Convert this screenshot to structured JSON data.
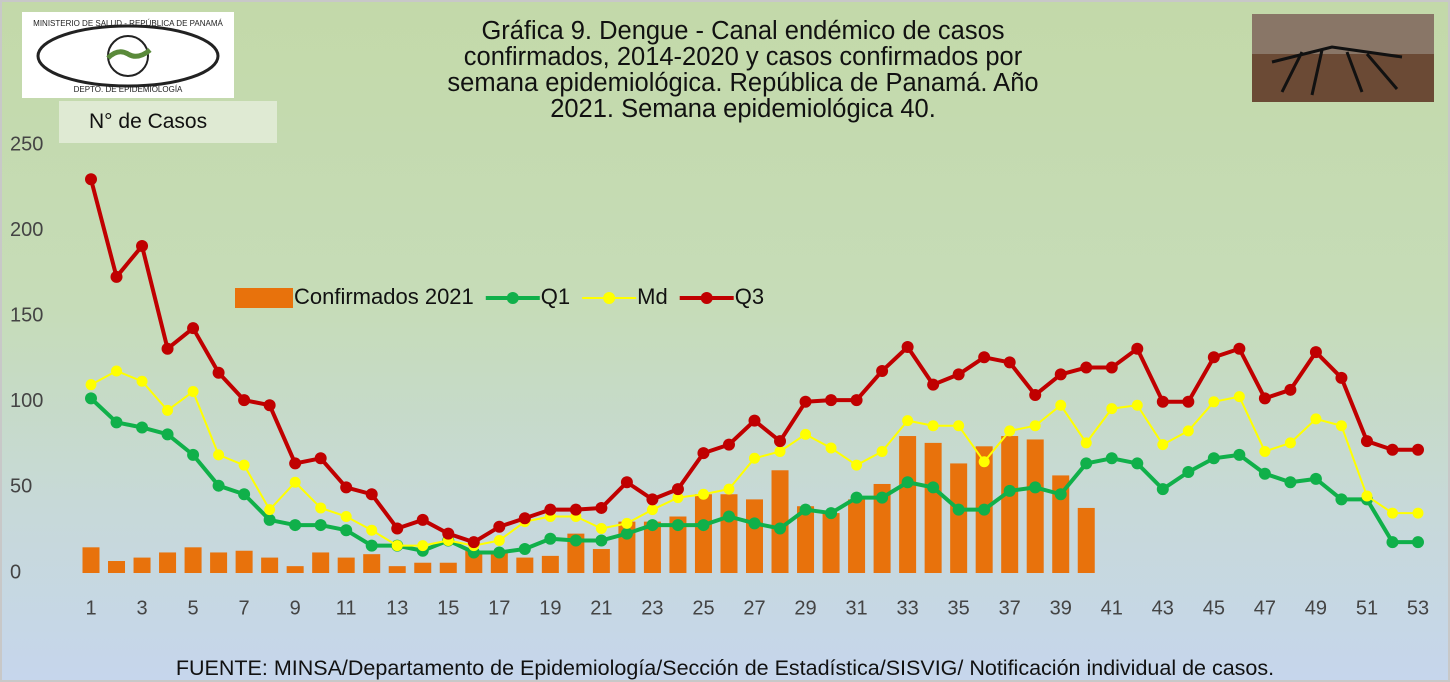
{
  "chart_data": {
    "type": "bar-line",
    "title": "Gráfica 9. Dengue - Canal endémico de casos confirmados, 2014-2020 y casos confirmados por semana epidemiológica. República de Panamá. Año 2021. Semana epidemiológica 40.",
    "y_label": "N° de Casos",
    "source": "FUENTE: MINSA/Departamento de Epidemiología/Sección de Estadística/SISVIG/ Notificación individual de casos.",
    "logo": {
      "top": "MINISTERIO DE SALUD - REPÚBLICA DE PANAMÁ",
      "bottom": "DEPTO. DE EPIDEMIOLOGÍA"
    },
    "categories": [
      1,
      null,
      3,
      null,
      5,
      null,
      7,
      null,
      9,
      null,
      11,
      null,
      13,
      null,
      15,
      null,
      17,
      null,
      19,
      null,
      21,
      null,
      23,
      null,
      25,
      null,
      27,
      null,
      29,
      null,
      31,
      null,
      33,
      null,
      35,
      null,
      37,
      null,
      39,
      null,
      41,
      null,
      43,
      null,
      45,
      null,
      47,
      null,
      49,
      null,
      51,
      null,
      53
    ],
    "ylim": [
      0,
      250
    ],
    "yticks": [
      0,
      50,
      100,
      150,
      200,
      250
    ],
    "grid": false,
    "series": [
      {
        "name": "Confirmados 2021",
        "kind": "bar",
        "color": "#e8720c",
        "values": [
          15,
          7,
          9,
          12,
          15,
          12,
          13,
          9,
          4,
          12,
          9,
          11,
          4,
          6,
          6,
          13,
          13,
          9,
          10,
          23,
          14,
          30,
          30,
          33,
          46,
          46,
          43,
          60,
          39,
          35,
          43,
          52,
          80,
          76,
          64,
          74,
          80,
          78,
          57,
          38,
          null,
          null,
          null,
          null,
          null,
          null,
          null,
          null,
          null,
          null,
          null,
          null,
          null
        ]
      },
      {
        "name": "Q1",
        "kind": "line",
        "color": "#10b04a",
        "values": [
          102,
          88,
          85,
          81,
          69,
          51,
          46,
          31,
          28,
          28,
          25,
          16,
          16,
          13,
          19,
          12,
          12,
          14,
          20,
          19,
          19,
          23,
          28,
          28,
          28,
          33,
          29,
          26,
          37,
          35,
          44,
          44,
          53,
          50,
          37,
          37,
          48,
          50,
          46,
          64,
          67,
          64,
          49,
          59,
          67,
          69,
          58,
          53,
          55,
          43,
          43,
          18,
          18
        ]
      },
      {
        "name": "Md",
        "kind": "line",
        "color": "#ffff00",
        "values": [
          110,
          118,
          112,
          95,
          106,
          69,
          63,
          37,
          53,
          38,
          33,
          25,
          16,
          16,
          19,
          16,
          19,
          30,
          33,
          33,
          26,
          29,
          37,
          44,
          46,
          49,
          67,
          71,
          81,
          73,
          63,
          71,
          89,
          86,
          86,
          65,
          83,
          86,
          98,
          76,
          96,
          98,
          75,
          83,
          100,
          103,
          71,
          76,
          90,
          86,
          45,
          35,
          35
        ]
      },
      {
        "name": "Q3",
        "kind": "line",
        "color": "#c00000",
        "values": [
          230,
          173,
          191,
          131,
          143,
          117,
          101,
          98,
          64,
          67,
          50,
          46,
          26,
          31,
          23,
          18,
          27,
          32,
          37,
          37,
          38,
          53,
          43,
          49,
          70,
          75,
          89,
          77,
          100,
          101,
          101,
          118,
          132,
          110,
          116,
          126,
          123,
          104,
          116,
          120,
          120,
          131,
          100,
          100,
          126,
          131,
          102,
          107,
          129,
          114,
          77,
          72,
          72
        ]
      }
    ]
  }
}
